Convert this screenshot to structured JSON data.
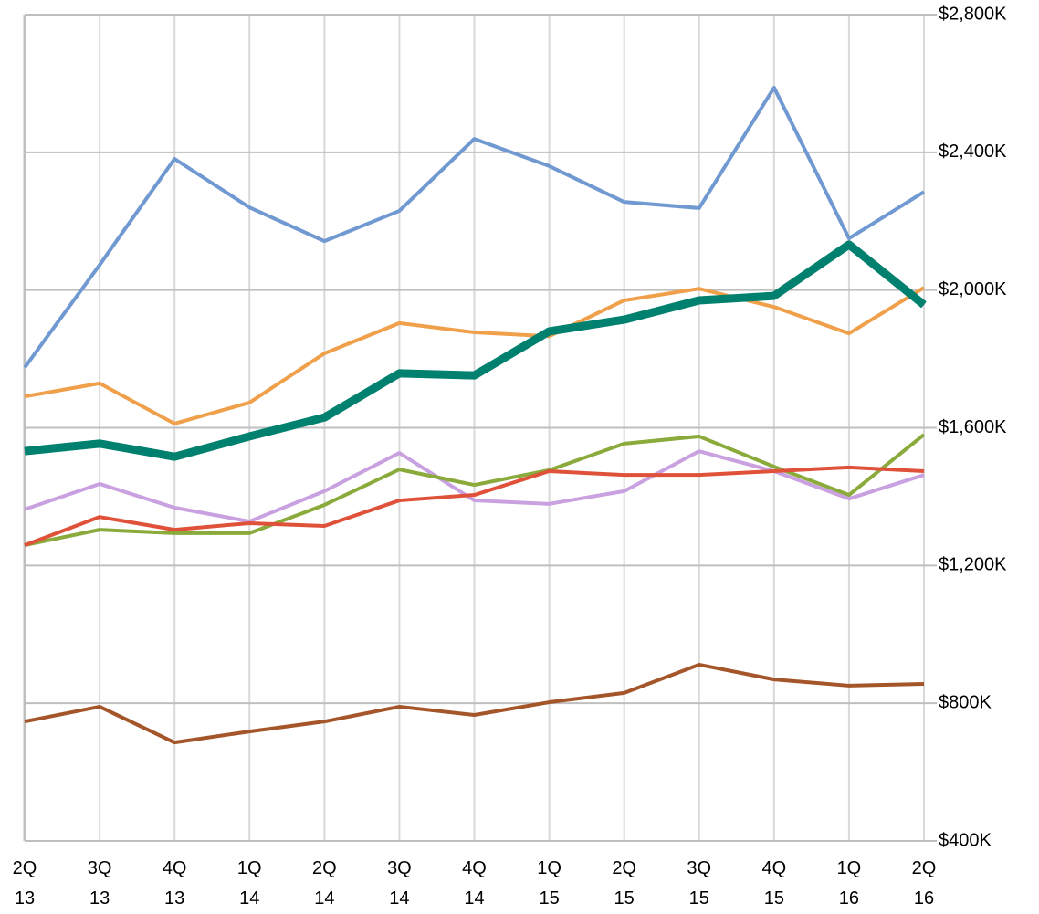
{
  "chart_data": {
    "type": "line",
    "categories": [
      "2Q\n13",
      "3Q\n13",
      "4Q\n13",
      "1Q\n14",
      "2Q\n14",
      "3Q\n14",
      "4Q\n14",
      "1Q\n15",
      "2Q\n15",
      "3Q\n15",
      "4Q\n15",
      "1Q\n16",
      "2Q\n16"
    ],
    "ylim": [
      400,
      2800
    ],
    "yticks": [
      {
        "value": 400,
        "label": "$400K"
      },
      {
        "value": 800,
        "label": "$800K"
      },
      {
        "value": 1200,
        "label": "$1,200K"
      },
      {
        "value": 1600,
        "label": "$1,600K"
      },
      {
        "value": 2000,
        "label": "$2,000K"
      },
      {
        "value": 2400,
        "label": "$2,400K"
      },
      {
        "value": 2800,
        "label": "$2,800K"
      }
    ],
    "y_axis_side": "right",
    "grid": true,
    "series": [
      {
        "color": "#7099d1",
        "line_width": 4,
        "values": [
          1775,
          2073,
          2381,
          2240,
          2142,
          2230,
          2439,
          2360,
          2256,
          2238,
          2588,
          2150,
          2285
        ]
      },
      {
        "color": "#a5552a",
        "line_width": 4,
        "values": [
          747,
          790,
          686,
          718,
          747,
          790,
          766,
          803,
          830,
          912,
          869,
          851,
          856
        ]
      },
      {
        "color": "#c9a0e0",
        "line_width": 4,
        "values": [
          1363,
          1437,
          1368,
          1328,
          1416,
          1527,
          1389,
          1379,
          1416,
          1532,
          1474,
          1394,
          1463
        ]
      },
      {
        "color": "#8aab3c",
        "line_width": 4,
        "values": [
          1259,
          1304,
          1294,
          1294,
          1376,
          1479,
          1434,
          1477,
          1554,
          1575,
          1487,
          1405,
          1580
        ]
      },
      {
        "color": "#e0513a",
        "line_width": 4,
        "values": [
          1259,
          1341,
          1304,
          1323,
          1315,
          1389,
          1405,
          1474,
          1463,
          1463,
          1474,
          1485,
          1474
        ]
      },
      {
        "color": "#f0a04b",
        "line_width": 4,
        "values": [
          1691,
          1729,
          1612,
          1673,
          1816,
          1904,
          1877,
          1866,
          1970,
          2004,
          1951,
          1874,
          2007
        ]
      },
      {
        "color": "#00806e",
        "line_width": 9,
        "values": [
          1532,
          1554,
          1516,
          1575,
          1630,
          1758,
          1752,
          1880,
          1914,
          1970,
          1983,
          2132,
          1957
        ]
      }
    ]
  }
}
